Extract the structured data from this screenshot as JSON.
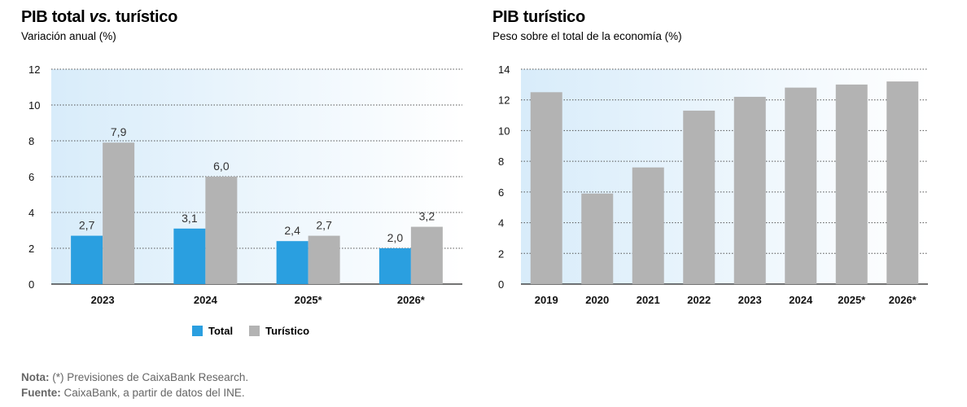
{
  "colors": {
    "total": "#2a9fe0",
    "turistico": "#b3b3b3",
    "grid": "#555555",
    "axis": "#222222"
  },
  "chart_data": [
    {
      "type": "bar",
      "title_main": "PIB total ",
      "title_em": "vs.",
      "title_end": " turístico",
      "subtitle": "Variación anual (%)",
      "categories": [
        "2023",
        "2024",
        "2025*",
        "2026*"
      ],
      "series": [
        {
          "name": "Total",
          "values": [
            2.7,
            3.1,
            2.4,
            2.0
          ],
          "labels": [
            "2,7",
            "3,1",
            "2,4",
            "2,0"
          ]
        },
        {
          "name": "Turístico",
          "values": [
            7.9,
            6.0,
            2.7,
            3.2
          ],
          "labels": [
            "7,9",
            "6,0",
            "2,7",
            "3,2"
          ]
        }
      ],
      "ylim": [
        0,
        12
      ],
      "yticks": [
        "0",
        "2",
        "4",
        "6",
        "8",
        "10",
        "12"
      ],
      "legend": "bottom-center",
      "grid": true
    },
    {
      "type": "bar",
      "title": "PIB turístico",
      "subtitle": "Peso sobre el total de la economía (%)",
      "categories": [
        "2019",
        "2020",
        "2021",
        "2022",
        "2023",
        "2024",
        "2025*",
        "2026*"
      ],
      "values": [
        12.5,
        5.9,
        7.6,
        11.3,
        12.2,
        12.8,
        13.0,
        13.2
      ],
      "ylim": [
        0,
        14
      ],
      "yticks": [
        "0",
        "2",
        "4",
        "6",
        "8",
        "10",
        "12",
        "14"
      ],
      "grid": true
    }
  ],
  "notes": {
    "nota_label": "Nota:",
    "nota_text": " (*) Previsiones de CaixaBank Research.",
    "fuente_label": "Fuente:",
    "fuente_text": " CaixaBank, a partir de datos del INE."
  }
}
